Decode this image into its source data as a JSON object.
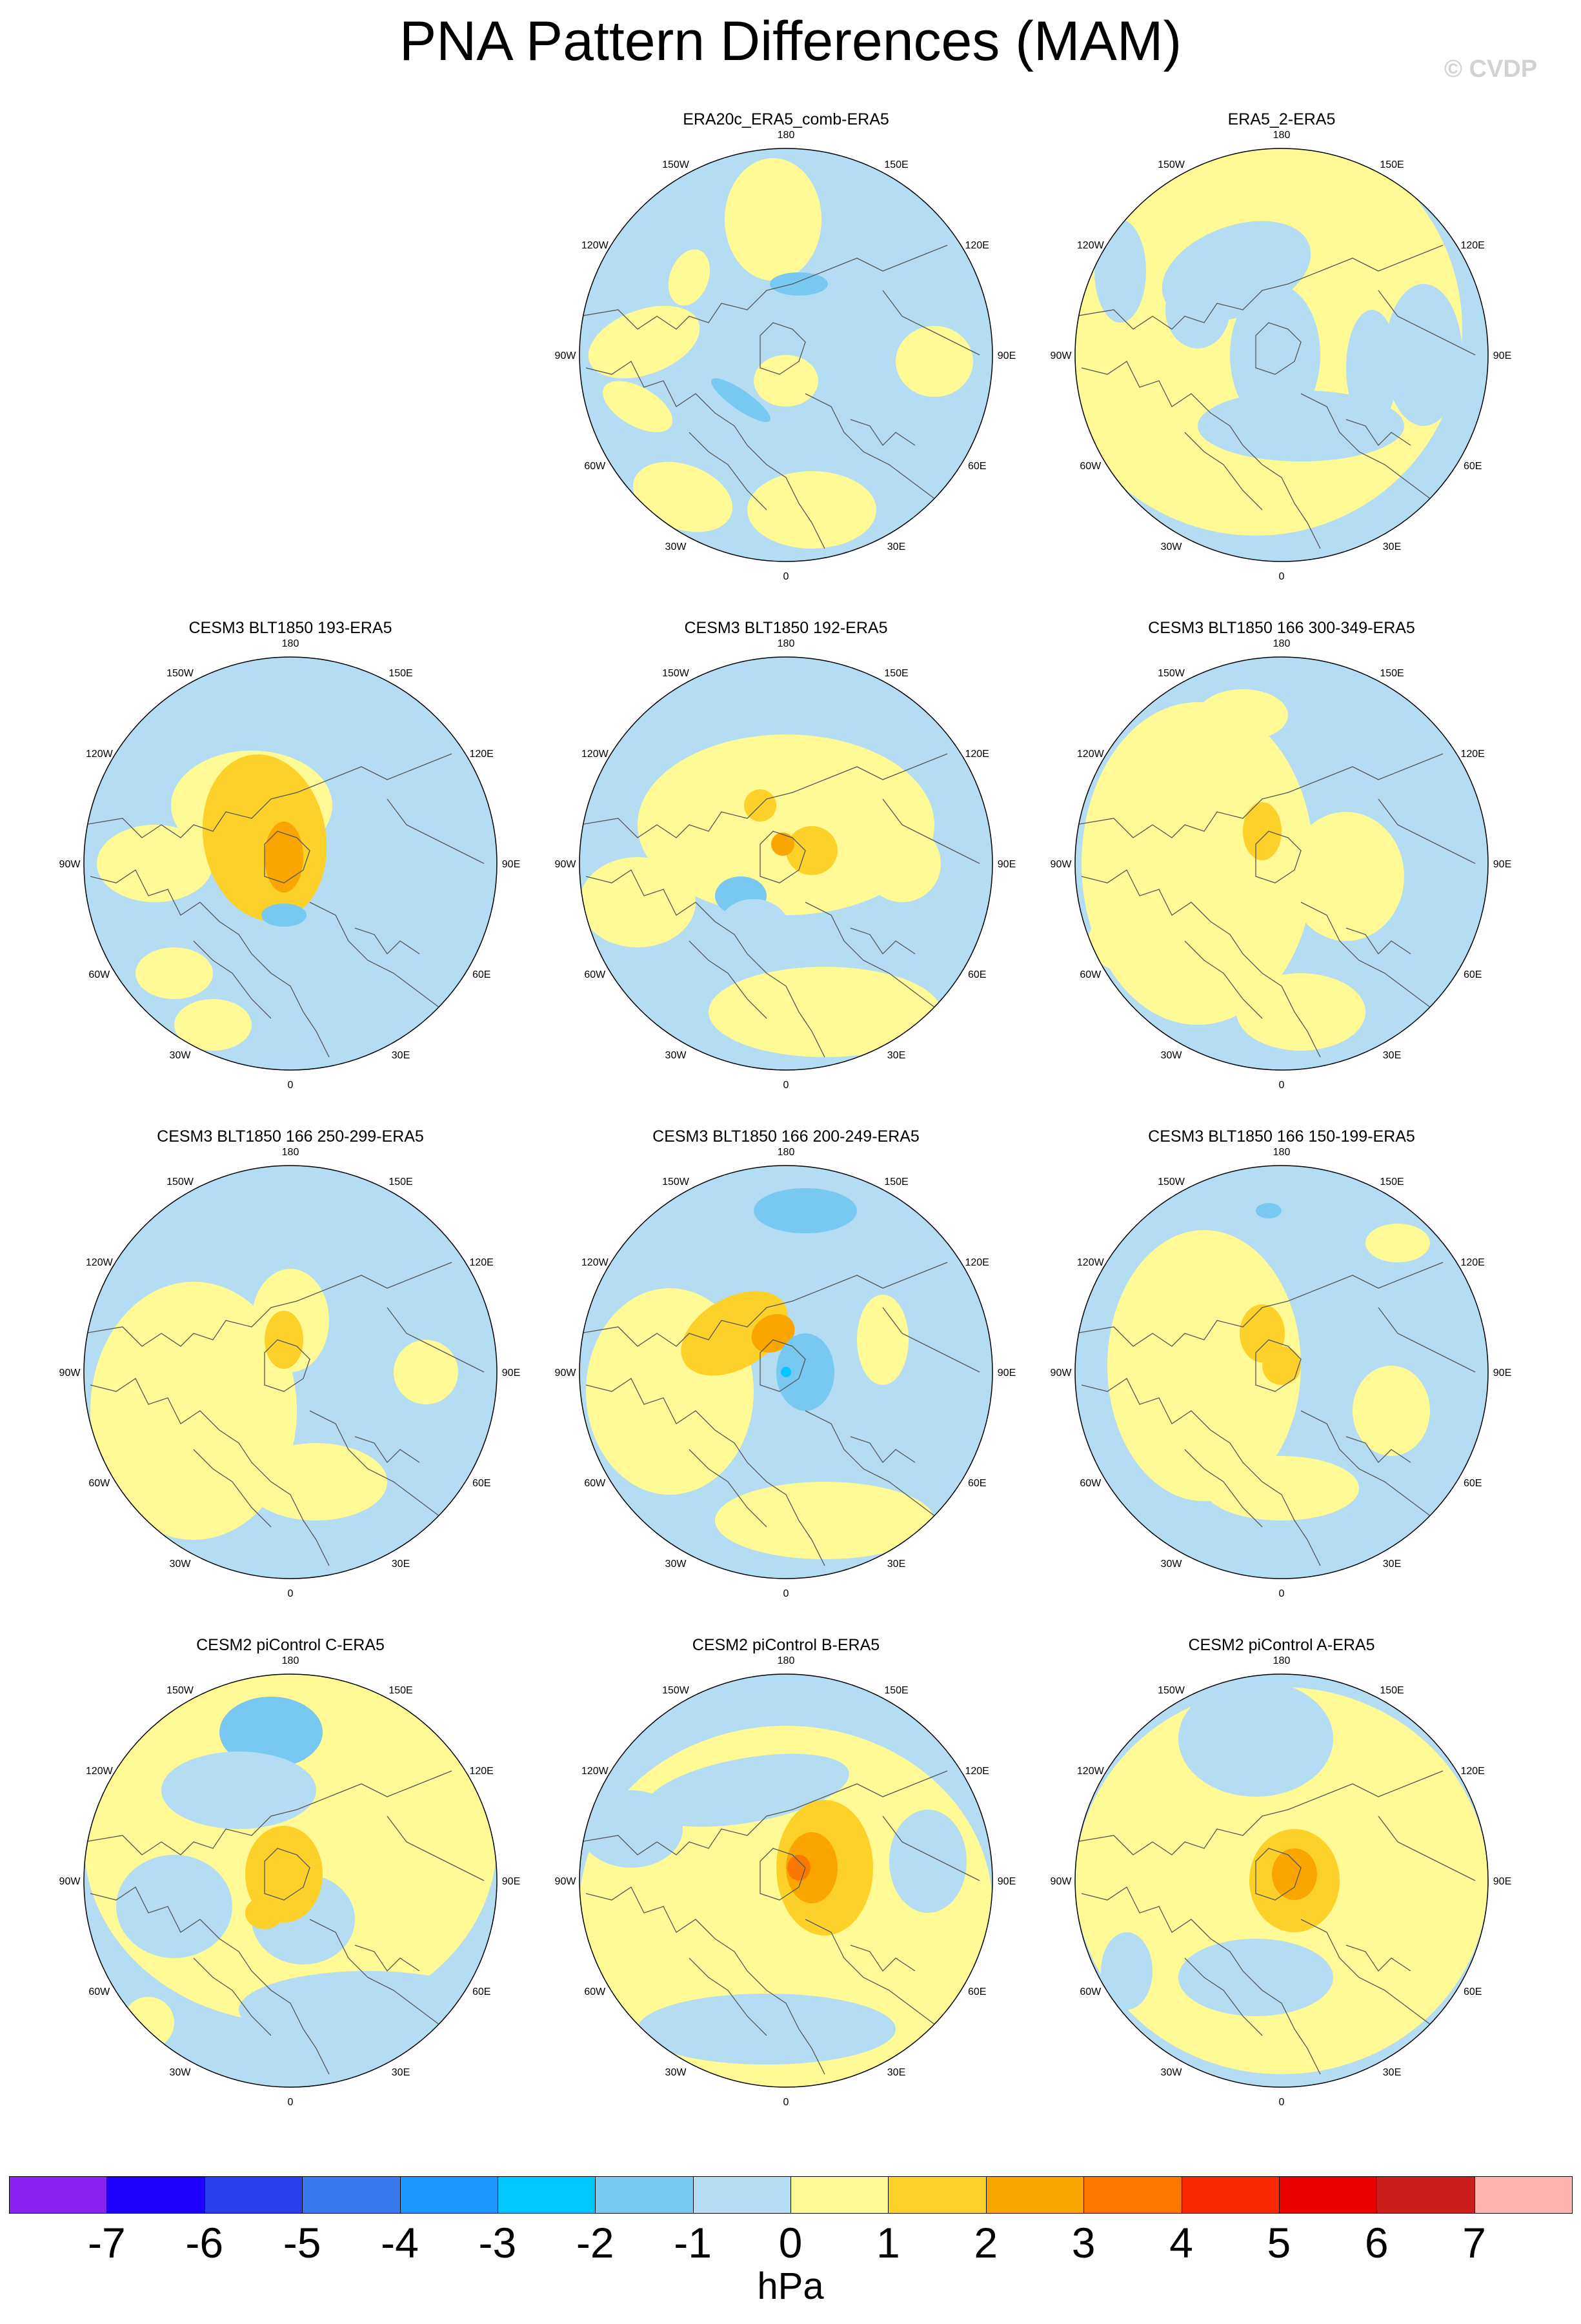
{
  "title": "PNA Pattern Differences (MAM)",
  "watermark": "© CVDP",
  "panels": [
    {
      "id": "era20c",
      "title": "ERA20c_ERA5_comb-ERA5"
    },
    {
      "id": "era5_2",
      "title": "ERA5_2-ERA5"
    },
    {
      "id": "blt193",
      "title": "CESM3 BLT1850 193-ERA5"
    },
    {
      "id": "blt192",
      "title": "CESM3 BLT1850 192-ERA5"
    },
    {
      "id": "blt166_300",
      "title": "CESM3 BLT1850 166 300-349-ERA5"
    },
    {
      "id": "blt166_250",
      "title": "CESM3 BLT1850 166 250-299-ERA5"
    },
    {
      "id": "blt166_200",
      "title": "CESM3 BLT1850 166 200-249-ERA5"
    },
    {
      "id": "blt166_150",
      "title": "CESM3 BLT1850 166 150-199-ERA5"
    },
    {
      "id": "picontrol_c",
      "title": "CESM2 piControl C-ERA5"
    },
    {
      "id": "picontrol_b",
      "title": "CESM2 piControl B-ERA5"
    },
    {
      "id": "picontrol_a",
      "title": "CESM2 piControl A-ERA5"
    }
  ],
  "longitude_labels": [
    "180",
    "150E",
    "120E",
    "90E",
    "60E",
    "30E",
    "0",
    "30W",
    "60W",
    "90W",
    "120W",
    "150W"
  ],
  "colorbar": {
    "units": "hPa",
    "tick_labels": [
      "-7",
      "-6",
      "-5",
      "-4",
      "-3",
      "-2",
      "-1",
      "0",
      "1",
      "2",
      "3",
      "4",
      "5",
      "6",
      "7"
    ],
    "colors": [
      "#8a22f0",
      "#1e00ff",
      "#2a3ff0",
      "#3a78ee",
      "#1e96ff",
      "#00c8ff",
      "#78c8f2",
      "#b4dcf2",
      "#fffa96",
      "#fcd22a",
      "#faa500",
      "#fa7800",
      "#fa2800",
      "#eb0000",
      "#cd1e1e",
      "#ffb4b4"
    ]
  },
  "map_colors": {
    "zero_to_minus1": "#b4dcf2",
    "minus1_to_minus2": "#78c8f2",
    "minus2_to_minus3": "#00c8ff",
    "zero_to_1": "#fffa96",
    "one_to_2": "#fcd22a",
    "two_to_3": "#faa500",
    "three_to_4": "#fa7800",
    "coast": "#555555"
  }
}
